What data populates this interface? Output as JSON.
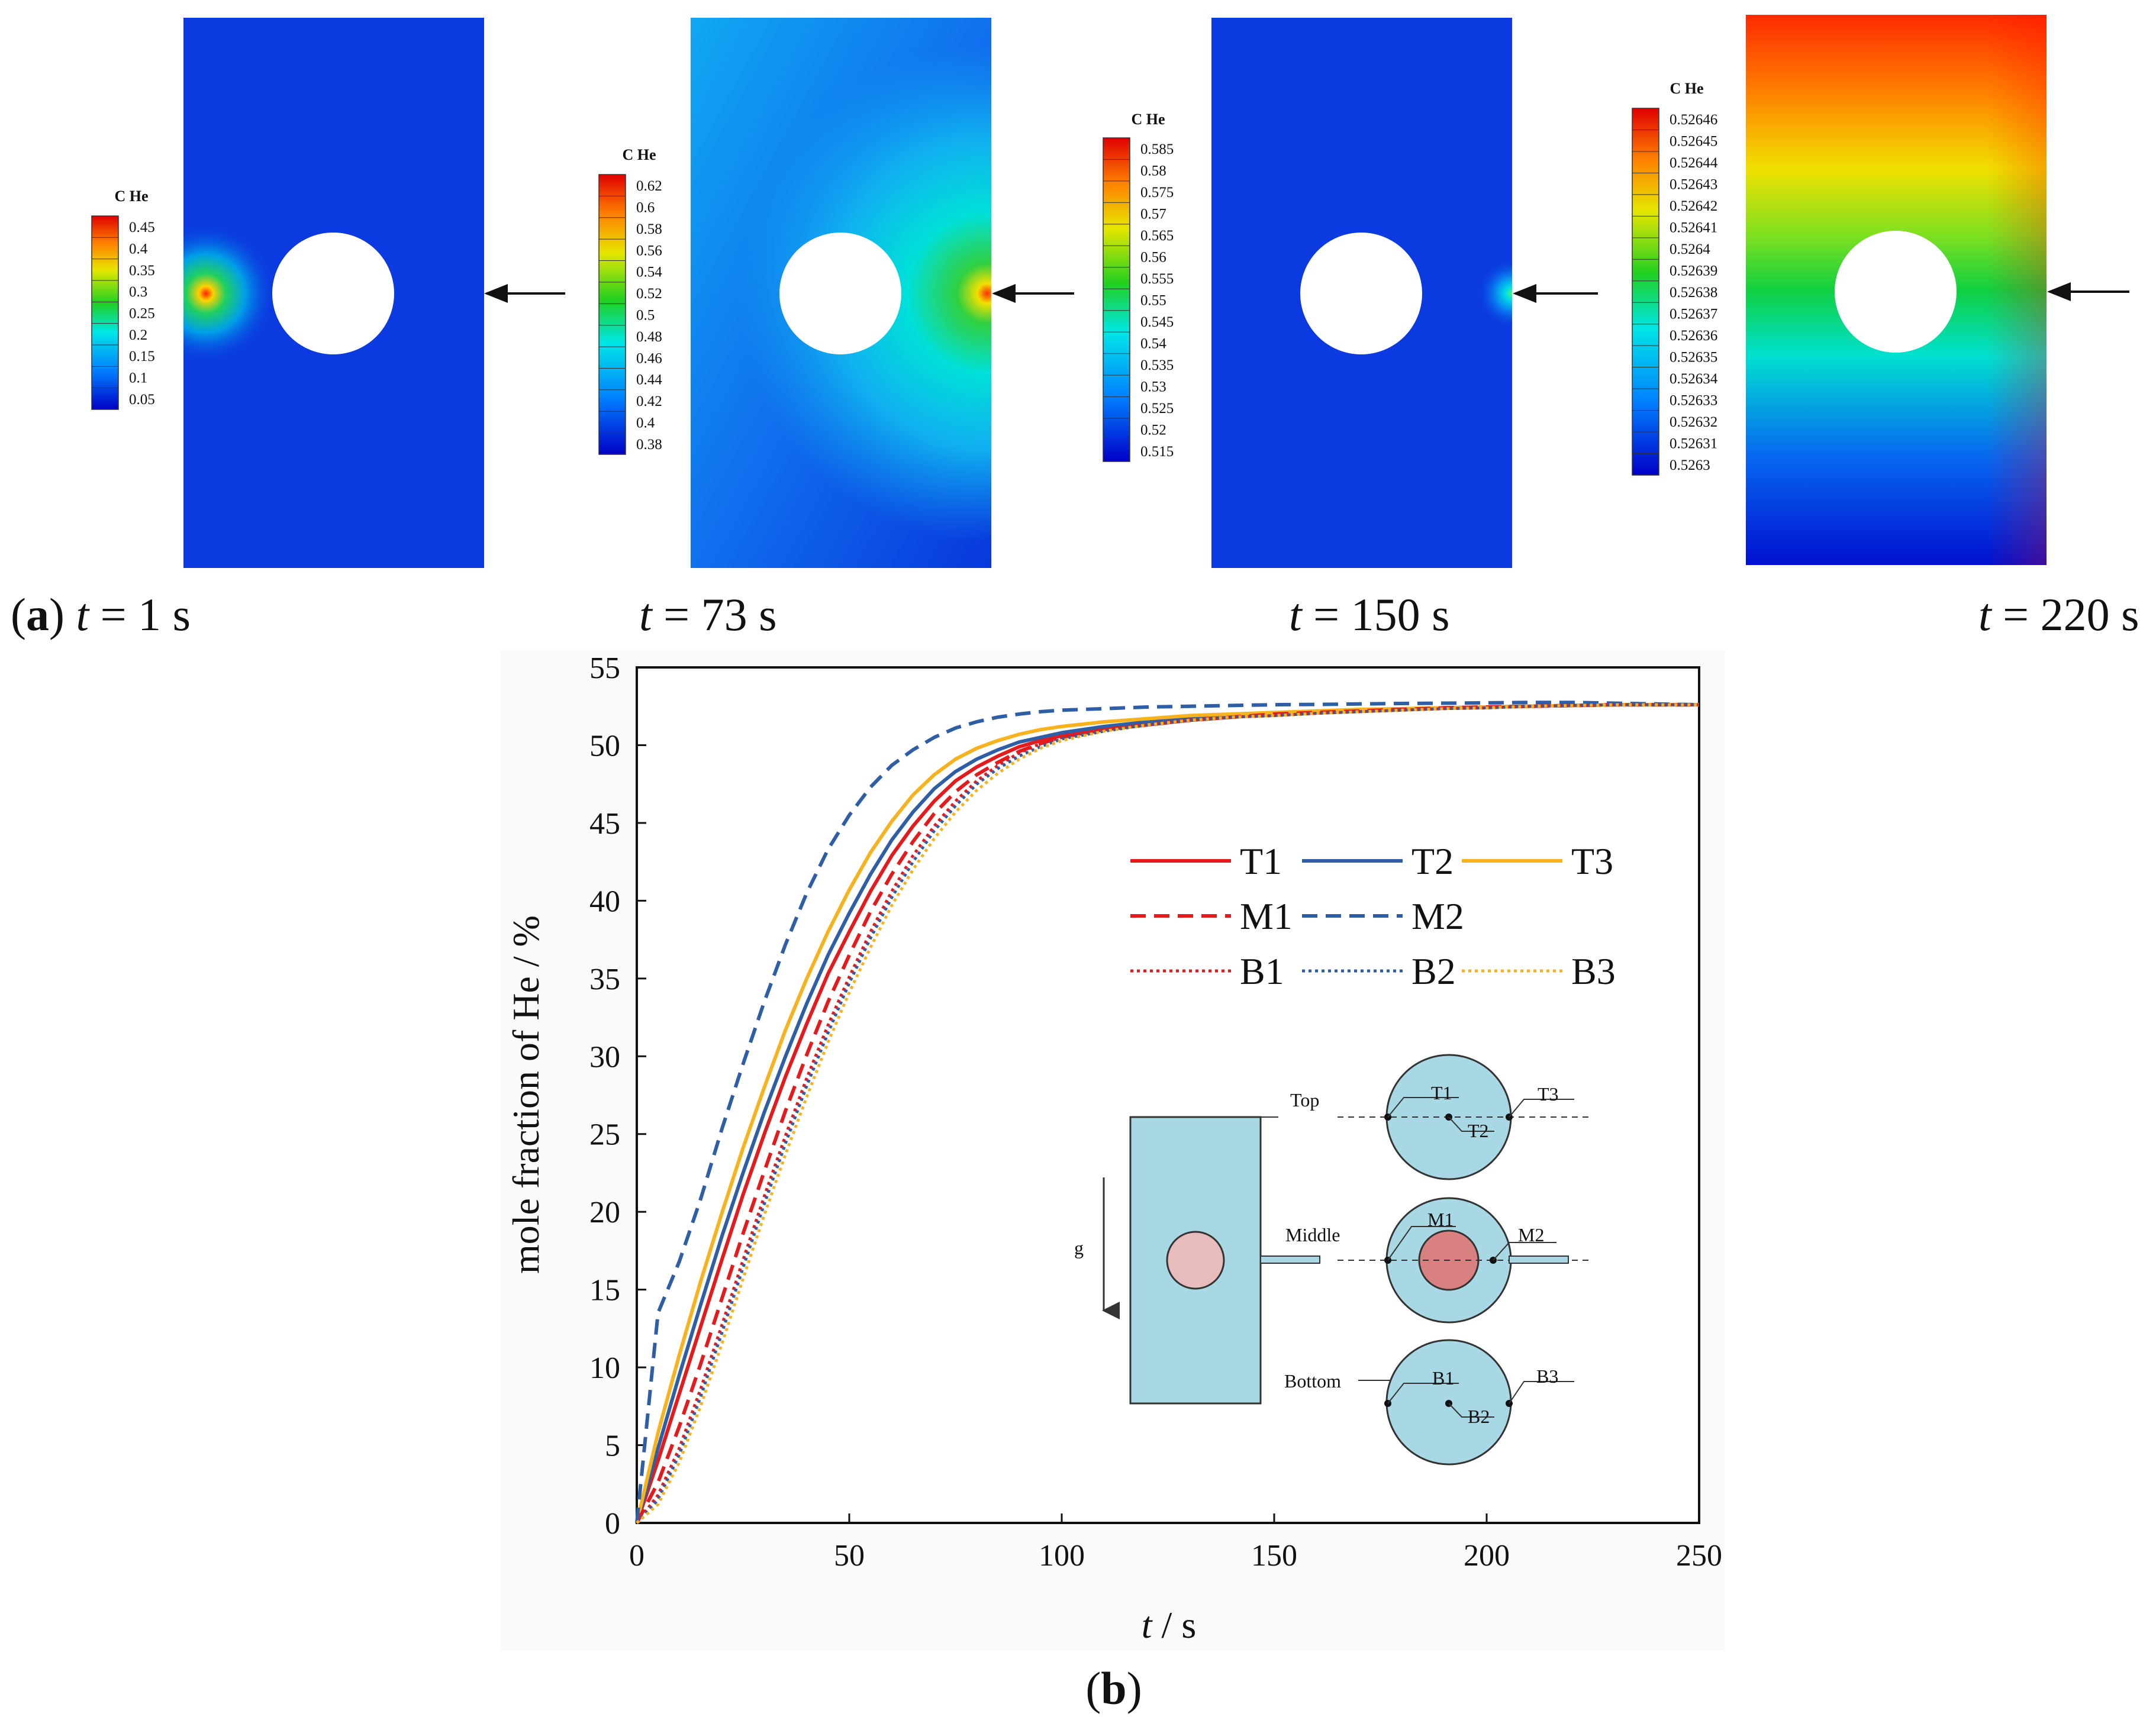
{
  "panel_a": {
    "label": "a",
    "contours": [
      {
        "time_label": "t = 1 s",
        "t_sym": "t",
        "t_val": "= 1 s",
        "colorbar_title": "C He",
        "colorbar_ticks": [
          "0.45",
          "0.4",
          "0.35",
          "0.3",
          "0.25",
          "0.2",
          "0.15",
          "0.1",
          "0.05"
        ]
      },
      {
        "time_label": "t = 73 s",
        "t_sym": "t",
        "t_val": "= 73 s",
        "colorbar_title": "C He",
        "colorbar_ticks": [
          "0.62",
          "0.6",
          "0.58",
          "0.56",
          "0.54",
          "0.52",
          "0.5",
          "0.48",
          "0.46",
          "0.44",
          "0.42",
          "0.4",
          "0.38"
        ]
      },
      {
        "time_label": "t = 150 s",
        "t_sym": "t",
        "t_val": "= 150 s",
        "colorbar_title": "C He",
        "colorbar_ticks": [
          "0.585",
          "0.58",
          "0.575",
          "0.57",
          "0.565",
          "0.56",
          "0.555",
          "0.55",
          "0.545",
          "0.54",
          "0.535",
          "0.53",
          "0.525",
          "0.52",
          "0.515"
        ]
      },
      {
        "time_label": "t = 220 s",
        "t_sym": "t",
        "t_val": "= 220 s",
        "colorbar_title": "C He",
        "colorbar_ticks": [
          "0.52646",
          "0.52645",
          "0.52644",
          "0.52643",
          "0.52642",
          "0.52641",
          "0.5264",
          "0.52639",
          "0.52638",
          "0.52637",
          "0.52636",
          "0.52635",
          "0.52634",
          "0.52633",
          "0.52632",
          "0.52631",
          "0.5263"
        ]
      }
    ]
  },
  "panel_b": {
    "label": "b",
    "schematic": {
      "labels": [
        "Top",
        "Middle",
        "Bottom",
        "g",
        "T1",
        "T2",
        "T3",
        "M1",
        "M2",
        "B1",
        "B2",
        "B3"
      ]
    }
  },
  "colors": {
    "red": "#e41a1c",
    "blue": "#2e5fa6",
    "gold": "#f7b21e"
  },
  "chart_data": {
    "type": "line",
    "title": "",
    "xlabel_sym": "t",
    "xlabel_unit": "/ s",
    "ylabel": "mole fraction of He / %",
    "xlim": [
      0,
      250
    ],
    "ylim": [
      0,
      55
    ],
    "xticks": [
      0,
      50,
      100,
      150,
      200,
      250
    ],
    "yticks": [
      0,
      5,
      10,
      15,
      20,
      25,
      30,
      35,
      40,
      45,
      50,
      55
    ],
    "x": [
      0,
      5,
      10,
      15,
      20,
      25,
      30,
      35,
      40,
      45,
      50,
      55,
      60,
      65,
      70,
      75,
      80,
      85,
      90,
      95,
      100,
      110,
      120,
      130,
      140,
      150,
      160,
      170,
      180,
      190,
      200,
      210,
      220,
      230,
      240,
      250
    ],
    "series": [
      {
        "name": "T1",
        "style": "solid",
        "color": "#e41a1c",
        "values": [
          0,
          4.0,
          8.3,
          12.6,
          16.9,
          21.1,
          25.0,
          28.7,
          32.1,
          35.3,
          38.0,
          40.6,
          42.9,
          44.8,
          46.4,
          47.7,
          48.6,
          49.3,
          49.9,
          50.3,
          50.6,
          51.0,
          51.3,
          51.6,
          51.8,
          52.0,
          52.1,
          52.2,
          52.3,
          52.4,
          52.45,
          52.5,
          52.55,
          52.6,
          52.6,
          52.6
        ]
      },
      {
        "name": "T2",
        "style": "solid",
        "color": "#2e5fa6",
        "values": [
          0,
          4.8,
          9.5,
          14.0,
          18.4,
          22.5,
          26.4,
          30.0,
          33.4,
          36.5,
          39.2,
          41.7,
          43.9,
          45.7,
          47.2,
          48.3,
          49.1,
          49.7,
          50.2,
          50.5,
          50.8,
          51.2,
          51.5,
          51.7,
          51.9,
          52.0,
          52.1,
          52.2,
          52.3,
          52.4,
          52.45,
          52.5,
          52.55,
          52.6,
          52.6,
          52.6
        ]
      },
      {
        "name": "T3",
        "style": "solid",
        "color": "#f7b21e",
        "values": [
          0,
          5.8,
          10.8,
          15.5,
          19.9,
          24.1,
          28.0,
          31.7,
          35.0,
          38.0,
          40.7,
          43.1,
          45.1,
          46.8,
          48.1,
          49.1,
          49.8,
          50.3,
          50.7,
          51.0,
          51.2,
          51.5,
          51.7,
          51.9,
          52.0,
          52.1,
          52.2,
          52.3,
          52.35,
          52.4,
          52.45,
          52.5,
          52.55,
          52.6,
          52.6,
          52.6
        ]
      },
      {
        "name": "M1",
        "style": "dashed",
        "color": "#e41a1c",
        "values": [
          0,
          2.6,
          6.2,
          10.2,
          14.4,
          18.6,
          22.6,
          26.5,
          30.1,
          33.5,
          36.5,
          39.3,
          41.7,
          43.8,
          45.6,
          47.0,
          48.1,
          48.9,
          49.6,
          50.1,
          50.5,
          51.0,
          51.3,
          51.6,
          51.8,
          52.0,
          52.1,
          52.2,
          52.3,
          52.4,
          52.45,
          52.5,
          52.55,
          52.6,
          52.6,
          52.6
        ]
      },
      {
        "name": "M2",
        "style": "dashed",
        "color": "#2e5fa6",
        "values": [
          0,
          13.5,
          16.8,
          20.8,
          25.3,
          29.5,
          33.5,
          37.2,
          40.5,
          43.3,
          45.5,
          47.3,
          48.7,
          49.7,
          50.5,
          51.1,
          51.5,
          51.8,
          52.0,
          52.15,
          52.25,
          52.35,
          52.45,
          52.5,
          52.55,
          52.6,
          52.62,
          52.65,
          52.68,
          52.7,
          52.72,
          52.75,
          52.75,
          52.7,
          52.65,
          52.6
        ]
      },
      {
        "name": "B1",
        "style": "dotted",
        "color": "#e41a1c",
        "values": [
          0,
          1.8,
          4.8,
          8.6,
          12.7,
          16.9,
          21.0,
          24.9,
          28.6,
          32.0,
          35.1,
          38.0,
          40.6,
          42.9,
          44.8,
          46.4,
          47.7,
          48.7,
          49.5,
          50.1,
          50.5,
          51.0,
          51.3,
          51.6,
          51.8,
          51.9,
          52.05,
          52.15,
          52.25,
          52.35,
          52.4,
          52.5,
          52.55,
          52.6,
          52.6,
          52.6
        ]
      },
      {
        "name": "B2",
        "style": "dotted",
        "color": "#2e5fa6",
        "values": [
          0,
          1.5,
          4.4,
          8.1,
          12.2,
          16.4,
          20.5,
          24.4,
          28.1,
          31.5,
          34.7,
          37.6,
          40.2,
          42.5,
          44.5,
          46.1,
          47.5,
          48.5,
          49.3,
          49.9,
          50.4,
          50.9,
          51.3,
          51.6,
          51.8,
          51.9,
          52.05,
          52.15,
          52.25,
          52.35,
          52.4,
          52.5,
          52.55,
          52.6,
          52.6,
          52.6
        ]
      },
      {
        "name": "B3",
        "style": "dotted",
        "color": "#f7b21e",
        "values": [
          0,
          1.2,
          3.9,
          7.5,
          11.5,
          15.7,
          19.8,
          23.7,
          27.4,
          30.9,
          34.1,
          37.0,
          39.7,
          42.0,
          44.0,
          45.7,
          47.1,
          48.2,
          49.1,
          49.8,
          50.3,
          50.9,
          51.3,
          51.6,
          51.8,
          51.9,
          52.05,
          52.15,
          52.25,
          52.35,
          52.4,
          52.5,
          52.55,
          52.6,
          52.6,
          52.6
        ]
      }
    ]
  }
}
